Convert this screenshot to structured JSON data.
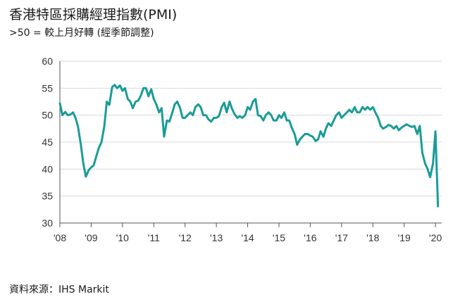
{
  "header": {
    "title": "香港特區採購經理指數(PMI)",
    "subtitle": ">50 = 較上月好轉 (經季節調整)"
  },
  "footer": {
    "source": "資料來源：IHS Markit"
  },
  "colors": {
    "line": "#1a9c98",
    "grid": "#d9d9d9",
    "axis": "#555555"
  },
  "chart_data": {
    "type": "line",
    "title": "香港特區採購經理指數(PMI)",
    "subtitle": ">50 = 較上月好轉 (經季節調整)",
    "xlabel": "",
    "ylabel": "",
    "ylim": [
      30,
      60
    ],
    "xlim": [
      2008.0,
      2020.2
    ],
    "yticks": [
      30,
      35,
      40,
      45,
      50,
      55,
      60
    ],
    "xtick_values": [
      2008,
      2009,
      2010,
      2011,
      2012,
      2013,
      2014,
      2015,
      2016,
      2017,
      2018,
      2019,
      2020
    ],
    "xtick_labels": [
      "'08",
      "'09",
      "'10",
      "'11",
      "'12",
      "'13",
      "'14",
      "'15",
      "'16",
      "'17",
      "'18",
      "'19",
      "'20"
    ],
    "grid": "horizontal",
    "series": [
      {
        "x": [
          2008.0,
          2008.08,
          2008.17,
          2008.25,
          2008.33,
          2008.42,
          2008.5,
          2008.58,
          2008.67,
          2008.75,
          2008.83,
          2008.92,
          2009.0,
          2009.08,
          2009.17,
          2009.25,
          2009.33,
          2009.42,
          2009.5,
          2009.58,
          2009.67,
          2009.75,
          2009.83,
          2009.92,
          2010.0,
          2010.08,
          2010.17,
          2010.25,
          2010.33,
          2010.42,
          2010.5,
          2010.58,
          2010.67,
          2010.75,
          2010.83,
          2010.92,
          2011.0,
          2011.08,
          2011.17,
          2011.25,
          2011.33,
          2011.42,
          2011.5,
          2011.58,
          2011.67,
          2011.75,
          2011.83,
          2011.92,
          2012.0,
          2012.08,
          2012.17,
          2012.25,
          2012.33,
          2012.42,
          2012.5,
          2012.58,
          2012.67,
          2012.75,
          2012.83,
          2012.92,
          2013.0,
          2013.08,
          2013.17,
          2013.25,
          2013.33,
          2013.42,
          2013.5,
          2013.58,
          2013.67,
          2013.75,
          2013.83,
          2013.92,
          2014.0,
          2014.08,
          2014.17,
          2014.25,
          2014.33,
          2014.42,
          2014.5,
          2014.58,
          2014.67,
          2014.75,
          2014.83,
          2014.92,
          2015.0,
          2015.08,
          2015.17,
          2015.25,
          2015.33,
          2015.42,
          2015.5,
          2015.58,
          2015.67,
          2015.75,
          2015.83,
          2015.92,
          2016.0,
          2016.08,
          2016.17,
          2016.25,
          2016.33,
          2016.42,
          2016.5,
          2016.58,
          2016.67,
          2016.75,
          2016.83,
          2016.92,
          2017.0,
          2017.08,
          2017.17,
          2017.25,
          2017.33,
          2017.42,
          2017.5,
          2017.58,
          2017.67,
          2017.75,
          2017.83,
          2017.92,
          2018.0,
          2018.08,
          2018.17,
          2018.25,
          2018.33,
          2018.42,
          2018.5,
          2018.58,
          2018.67,
          2018.75,
          2018.83,
          2018.92,
          2019.0,
          2019.08,
          2019.17,
          2019.25,
          2019.33,
          2019.42,
          2019.5,
          2019.58,
          2019.67,
          2019.75,
          2019.83,
          2019.92,
          2020.0,
          2020.08
        ],
        "values": [
          52.2,
          50.0,
          50.6,
          50.0,
          50.1,
          50.5,
          49.5,
          47.8,
          44.5,
          41.0,
          38.6,
          39.8,
          40.3,
          40.7,
          42.5,
          44.0,
          45.0,
          48.0,
          52.5,
          51.9,
          55.2,
          55.6,
          55.0,
          55.5,
          54.5,
          55.0,
          53.0,
          52.5,
          51.3,
          52.5,
          52.7,
          53.5,
          55.0,
          55.0,
          53.5,
          54.8,
          53.0,
          52.0,
          50.5,
          51.3,
          46.0,
          49.0,
          48.8,
          50.2,
          52.0,
          52.5,
          51.5,
          49.5,
          49.5,
          50.0,
          50.5,
          50.0,
          51.5,
          52.0,
          51.5,
          50.0,
          50.0,
          49.2,
          48.8,
          49.5,
          49.5,
          49.8,
          51.5,
          52.3,
          50.5,
          52.5,
          51.2,
          50.2,
          49.5,
          49.8,
          49.5,
          50.0,
          51.5,
          51.0,
          52.5,
          53.0,
          50.0,
          49.8,
          49.0,
          50.0,
          50.5,
          50.0,
          49.0,
          49.0,
          50.0,
          49.5,
          50.5,
          49.0,
          49.0,
          47.5,
          46.5,
          44.5,
          45.5,
          46.0,
          46.5,
          46.5,
          46.2,
          46.0,
          45.2,
          45.5,
          47.0,
          46.0,
          47.5,
          48.5,
          48.0,
          49.0,
          50.0,
          50.5,
          49.5,
          50.0,
          50.5,
          51.0,
          50.5,
          51.5,
          50.5,
          50.5,
          51.5,
          51.0,
          51.5,
          51.0,
          51.5,
          50.5,
          49.5,
          48.0,
          47.5,
          47.8,
          48.2,
          48.0,
          47.5,
          48.0,
          47.2,
          47.7,
          48.0,
          48.3,
          48.0,
          47.8,
          48.0,
          46.5,
          48.0,
          43.0,
          41.0,
          40.0,
          38.5,
          41.0,
          47.0,
          33.1
        ]
      }
    ]
  }
}
